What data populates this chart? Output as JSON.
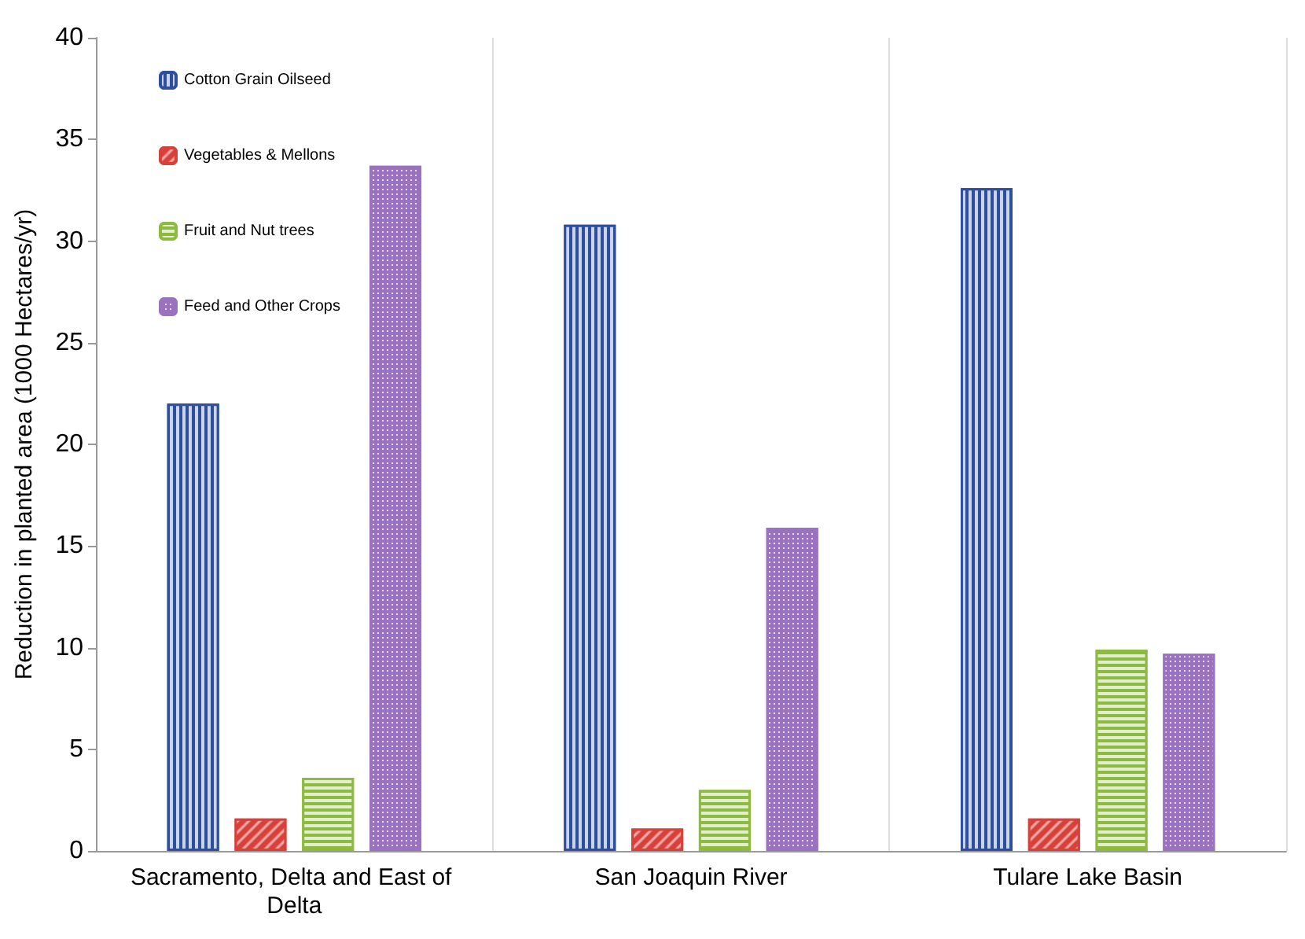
{
  "chart_data": {
    "type": "bar",
    "ylabel": "Reduction in planted area (1000 Hectares/yr)",
    "categories": [
      "Sacramento, Delta and East of Delta",
      "San Joaquin River",
      "Tulare Lake Basin"
    ],
    "series": [
      {
        "name": "Cotton Grain Oilseed",
        "color": "#2e4f9e",
        "values": [
          22,
          30.8,
          32.6
        ]
      },
      {
        "name": "Vegetables & Mellons",
        "color": "#d9403a",
        "values": [
          1.6,
          1.1,
          1.6
        ]
      },
      {
        "name": "Fruit and Nut trees",
        "color": "#8dbb3e",
        "values": [
          3.6,
          3.0,
          9.9
        ]
      },
      {
        "name": "Feed and Other Crops",
        "color": "#9a72bf",
        "values": [
          33.7,
          15.9,
          9.7
        ]
      }
    ],
    "ylim": [
      0,
      40
    ],
    "yticks": [
      0,
      5,
      10,
      15,
      20,
      25,
      30,
      35,
      40
    ],
    "grid": "x",
    "legend": "top left"
  }
}
